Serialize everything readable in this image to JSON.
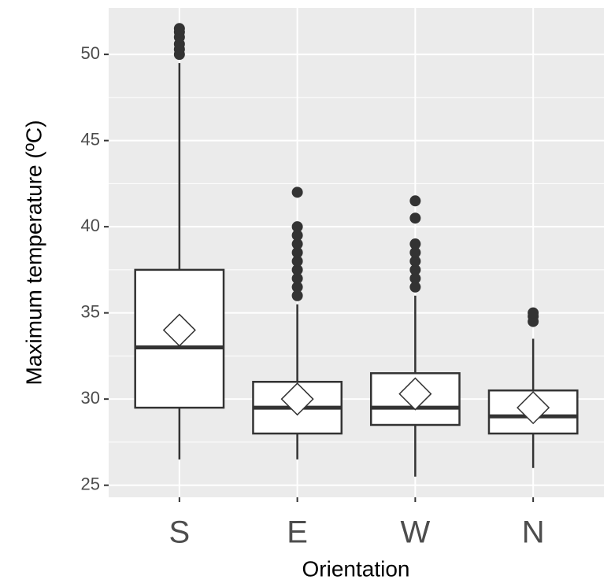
{
  "chart_data": {
    "type": "box",
    "x_label": "Orientation",
    "y_label": "Maximum temperature (ºC)",
    "categories": [
      "S",
      "E",
      "W",
      "N"
    ],
    "boxes": [
      {
        "min": 26.5,
        "q1": 29.5,
        "median": 33,
        "q3": 37.5,
        "max": 49.5,
        "mean": 34,
        "outliers": [
          50,
          50.3,
          50.6,
          51,
          51.3,
          51.5
        ]
      },
      {
        "min": 26.5,
        "q1": 28,
        "median": 29.5,
        "q3": 31,
        "max": 35.5,
        "mean": 30,
        "outliers": [
          36,
          36.5,
          37,
          37.5,
          38,
          38.5,
          39,
          39.5,
          40,
          42
        ]
      },
      {
        "min": 25.5,
        "q1": 28.5,
        "median": 29.5,
        "q3": 31.5,
        "max": 36,
        "mean": 30.3,
        "outliers": [
          36.5,
          37,
          37.5,
          38,
          38.5,
          39,
          40.5,
          41.5
        ]
      },
      {
        "min": 26,
        "q1": 28,
        "median": 29,
        "q3": 30.5,
        "max": 33.5,
        "mean": 29.5,
        "outliers": [
          34.5,
          34.8,
          35
        ]
      }
    ],
    "ylim": [
      24.3,
      52.7
    ],
    "yticks": [
      25,
      30,
      35,
      40,
      45,
      50
    ],
    "grid": true,
    "panel_color": "#ebebeb",
    "box_color": "#ffffff",
    "line_color": "#333333"
  }
}
